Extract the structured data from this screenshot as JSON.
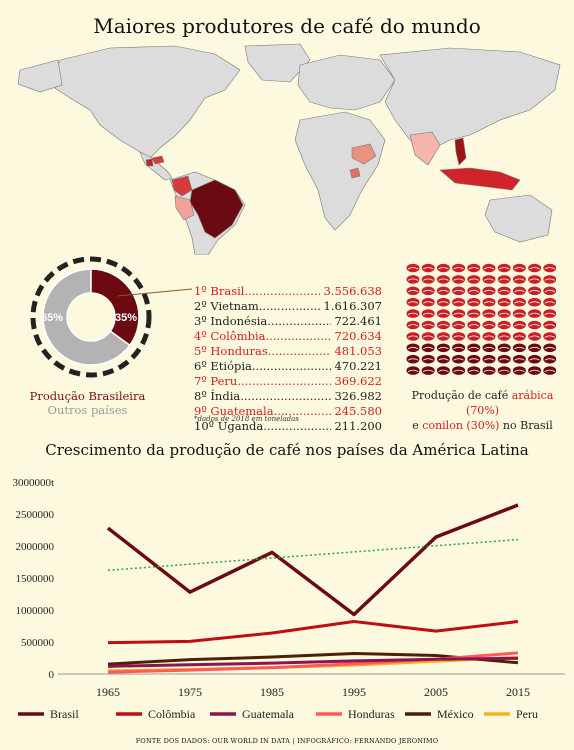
{
  "title": "Maiores produtores de café do mundo",
  "donut": {
    "brasil_pct": "35%",
    "outros_pct": "65%",
    "legend_brasil": "Produção Brasileira",
    "legend_outros": "Outros países",
    "colors": {
      "brasil": "#6b0a10",
      "outros": "#b3b3b3"
    }
  },
  "ranking": [
    {
      "pos": "1º",
      "name": "Brasil",
      "value": "3.556.638",
      "highlight": true
    },
    {
      "pos": "2º",
      "name": "Vietnam",
      "value": "1.616.307",
      "highlight": false
    },
    {
      "pos": "3º",
      "name": "Indonésia",
      "value": "722.461",
      "highlight": false
    },
    {
      "pos": "4º",
      "name": "Colômbia",
      "value": "720.634",
      "highlight": true
    },
    {
      "pos": "5º",
      "name": "Honduras",
      "value": "481.053",
      "highlight": true
    },
    {
      "pos": "6º",
      "name": "Etiópia",
      "value": "470.221",
      "highlight": false
    },
    {
      "pos": "7º",
      "name": "Peru",
      "value": "369.622",
      "highlight": true
    },
    {
      "pos": "8º",
      "name": "Índia",
      "value": "326.982",
      "highlight": false
    },
    {
      "pos": "9º",
      "name": "Guatemala",
      "value": "245.580",
      "highlight": true
    },
    {
      "pos": "10º",
      "name": "Uganda",
      "value": "211.200",
      "highlight": false
    }
  ],
  "ranking_note": "*dados de 2018 em toneladas",
  "beans": {
    "arabica_share": 0.7,
    "conilon_share": 0.3,
    "colors": {
      "arabica": "#c8202a",
      "conilon": "#6b0a10"
    },
    "caption_line1_pre": "Produção de café ",
    "caption_arabica": "arábica (70%)",
    "caption_line2_pre": "e ",
    "caption_conilon": "conilon (30%)",
    "caption_line2_post": " no Brasil"
  },
  "chart_title": "Crescimento da produção de café nos países da América Latina",
  "chart_data": {
    "type": "line",
    "title": "Crescimento da produção de café nos países da América Latina",
    "x": [
      "1965",
      "1975",
      "1985",
      "1995",
      "2005",
      "2015"
    ],
    "ylim": [
      0,
      3000000
    ],
    "yticks": [
      "0",
      "500000",
      "1000000",
      "1500000",
      "2000000",
      "2500000",
      "3000000t"
    ],
    "series": [
      {
        "name": "Brasil",
        "color": "#6b0a10",
        "values": [
          2280000,
          1280000,
          1900000,
          930000,
          2140000,
          2640000
        ]
      },
      {
        "name": "Colômbia",
        "color": "#c00d14",
        "values": [
          490000,
          510000,
          640000,
          820000,
          670000,
          820000
        ]
      },
      {
        "name": "Guatemala",
        "color": "#8b1550",
        "values": [
          120000,
          145000,
          170000,
          205000,
          230000,
          245000
        ]
      },
      {
        "name": "Honduras",
        "color": "#ff5a5a",
        "values": [
          30000,
          60000,
          100000,
          160000,
          230000,
          330000
        ]
      },
      {
        "name": "México",
        "color": "#4a2206",
        "values": [
          155000,
          225000,
          265000,
          320000,
          290000,
          175000
        ]
      },
      {
        "name": "Peru",
        "color": "#f4b21a",
        "values": [
          50000,
          70000,
          100000,
          140000,
          200000,
          260000
        ]
      }
    ],
    "trendline": {
      "series": "Brasil",
      "start": 1620000,
      "end": 2100000,
      "color": "#2fa14f"
    },
    "legend_position": "bottom",
    "grid": false
  },
  "footer": "FONTE DOS DADOS: OUR WORLD IN DATA | INFOGRÁFICO: FERNANDO JERONIMO"
}
